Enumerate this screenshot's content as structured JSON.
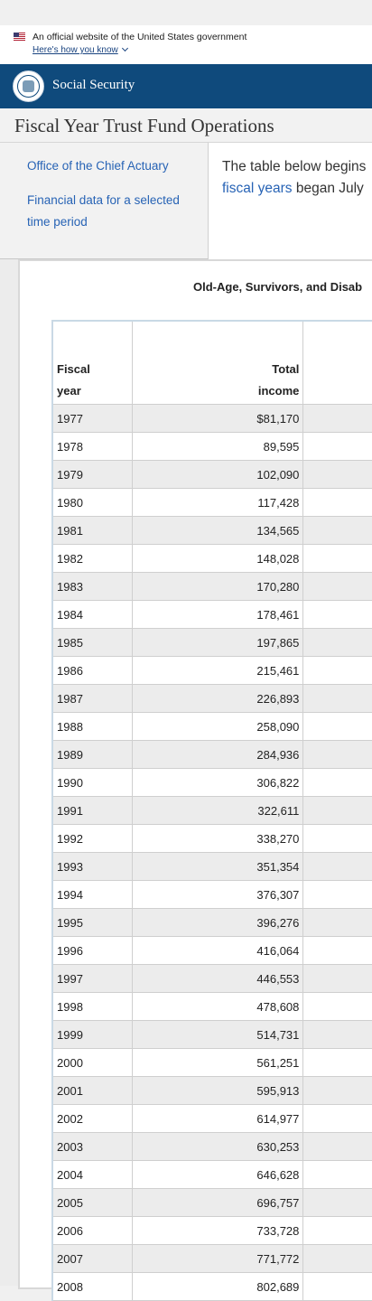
{
  "gov_banner": {
    "text": "An official website of the United States government",
    "link": "Here's how you know"
  },
  "header": {
    "site_name": "Social Security"
  },
  "page": {
    "title": "Fiscal Year Trust Fund Operations"
  },
  "sidenav": {
    "items": [
      {
        "label": "Office of the Chief Actuary"
      },
      {
        "label_line1": "Financial data for a selected",
        "label_line2": "time period"
      }
    ]
  },
  "intro": {
    "line1": "The table below begins",
    "line2_link": "fiscal years",
    "line2_rest": " began July"
  },
  "table": {
    "title": "Old-Age, Survivors, and Disab",
    "col1_line1": "Fiscal",
    "col1_line2": "year",
    "col2_line1": "Total",
    "col2_line2": "income",
    "rows": [
      {
        "year": "1977",
        "income": "$81,170"
      },
      {
        "year": "1978",
        "income": "89,595"
      },
      {
        "year": "1979",
        "income": "102,090"
      },
      {
        "year": "1980",
        "income": "117,428"
      },
      {
        "year": "1981",
        "income": "134,565"
      },
      {
        "year": "1982",
        "income": "148,028"
      },
      {
        "year": "1983",
        "income": "170,280"
      },
      {
        "year": "1984",
        "income": "178,461"
      },
      {
        "year": "1985",
        "income": "197,865"
      },
      {
        "year": "1986",
        "income": "215,461"
      },
      {
        "year": "1987",
        "income": "226,893"
      },
      {
        "year": "1988",
        "income": "258,090"
      },
      {
        "year": "1989",
        "income": "284,936"
      },
      {
        "year": "1990",
        "income": "306,822"
      },
      {
        "year": "1991",
        "income": "322,611"
      },
      {
        "year": "1992",
        "income": "338,270"
      },
      {
        "year": "1993",
        "income": "351,354"
      },
      {
        "year": "1994",
        "income": "376,307"
      },
      {
        "year": "1995",
        "income": "396,276"
      },
      {
        "year": "1996",
        "income": "416,064"
      },
      {
        "year": "1997",
        "income": "446,553"
      },
      {
        "year": "1998",
        "income": "478,608"
      },
      {
        "year": "1999",
        "income": "514,731"
      },
      {
        "year": "2000",
        "income": "561,251"
      },
      {
        "year": "2001",
        "income": "595,913"
      },
      {
        "year": "2002",
        "income": "614,977"
      },
      {
        "year": "2003",
        "income": "630,253"
      },
      {
        "year": "2004",
        "income": "646,628"
      },
      {
        "year": "2005",
        "income": "696,757"
      },
      {
        "year": "2006",
        "income": "733,728"
      },
      {
        "year": "2007",
        "income": "771,772"
      },
      {
        "year": "2008",
        "income": "802,689"
      }
    ]
  },
  "colors": {
    "header_bg": "#0f4a7c",
    "link": "#2763b5",
    "row_stripe": "#ececec"
  }
}
